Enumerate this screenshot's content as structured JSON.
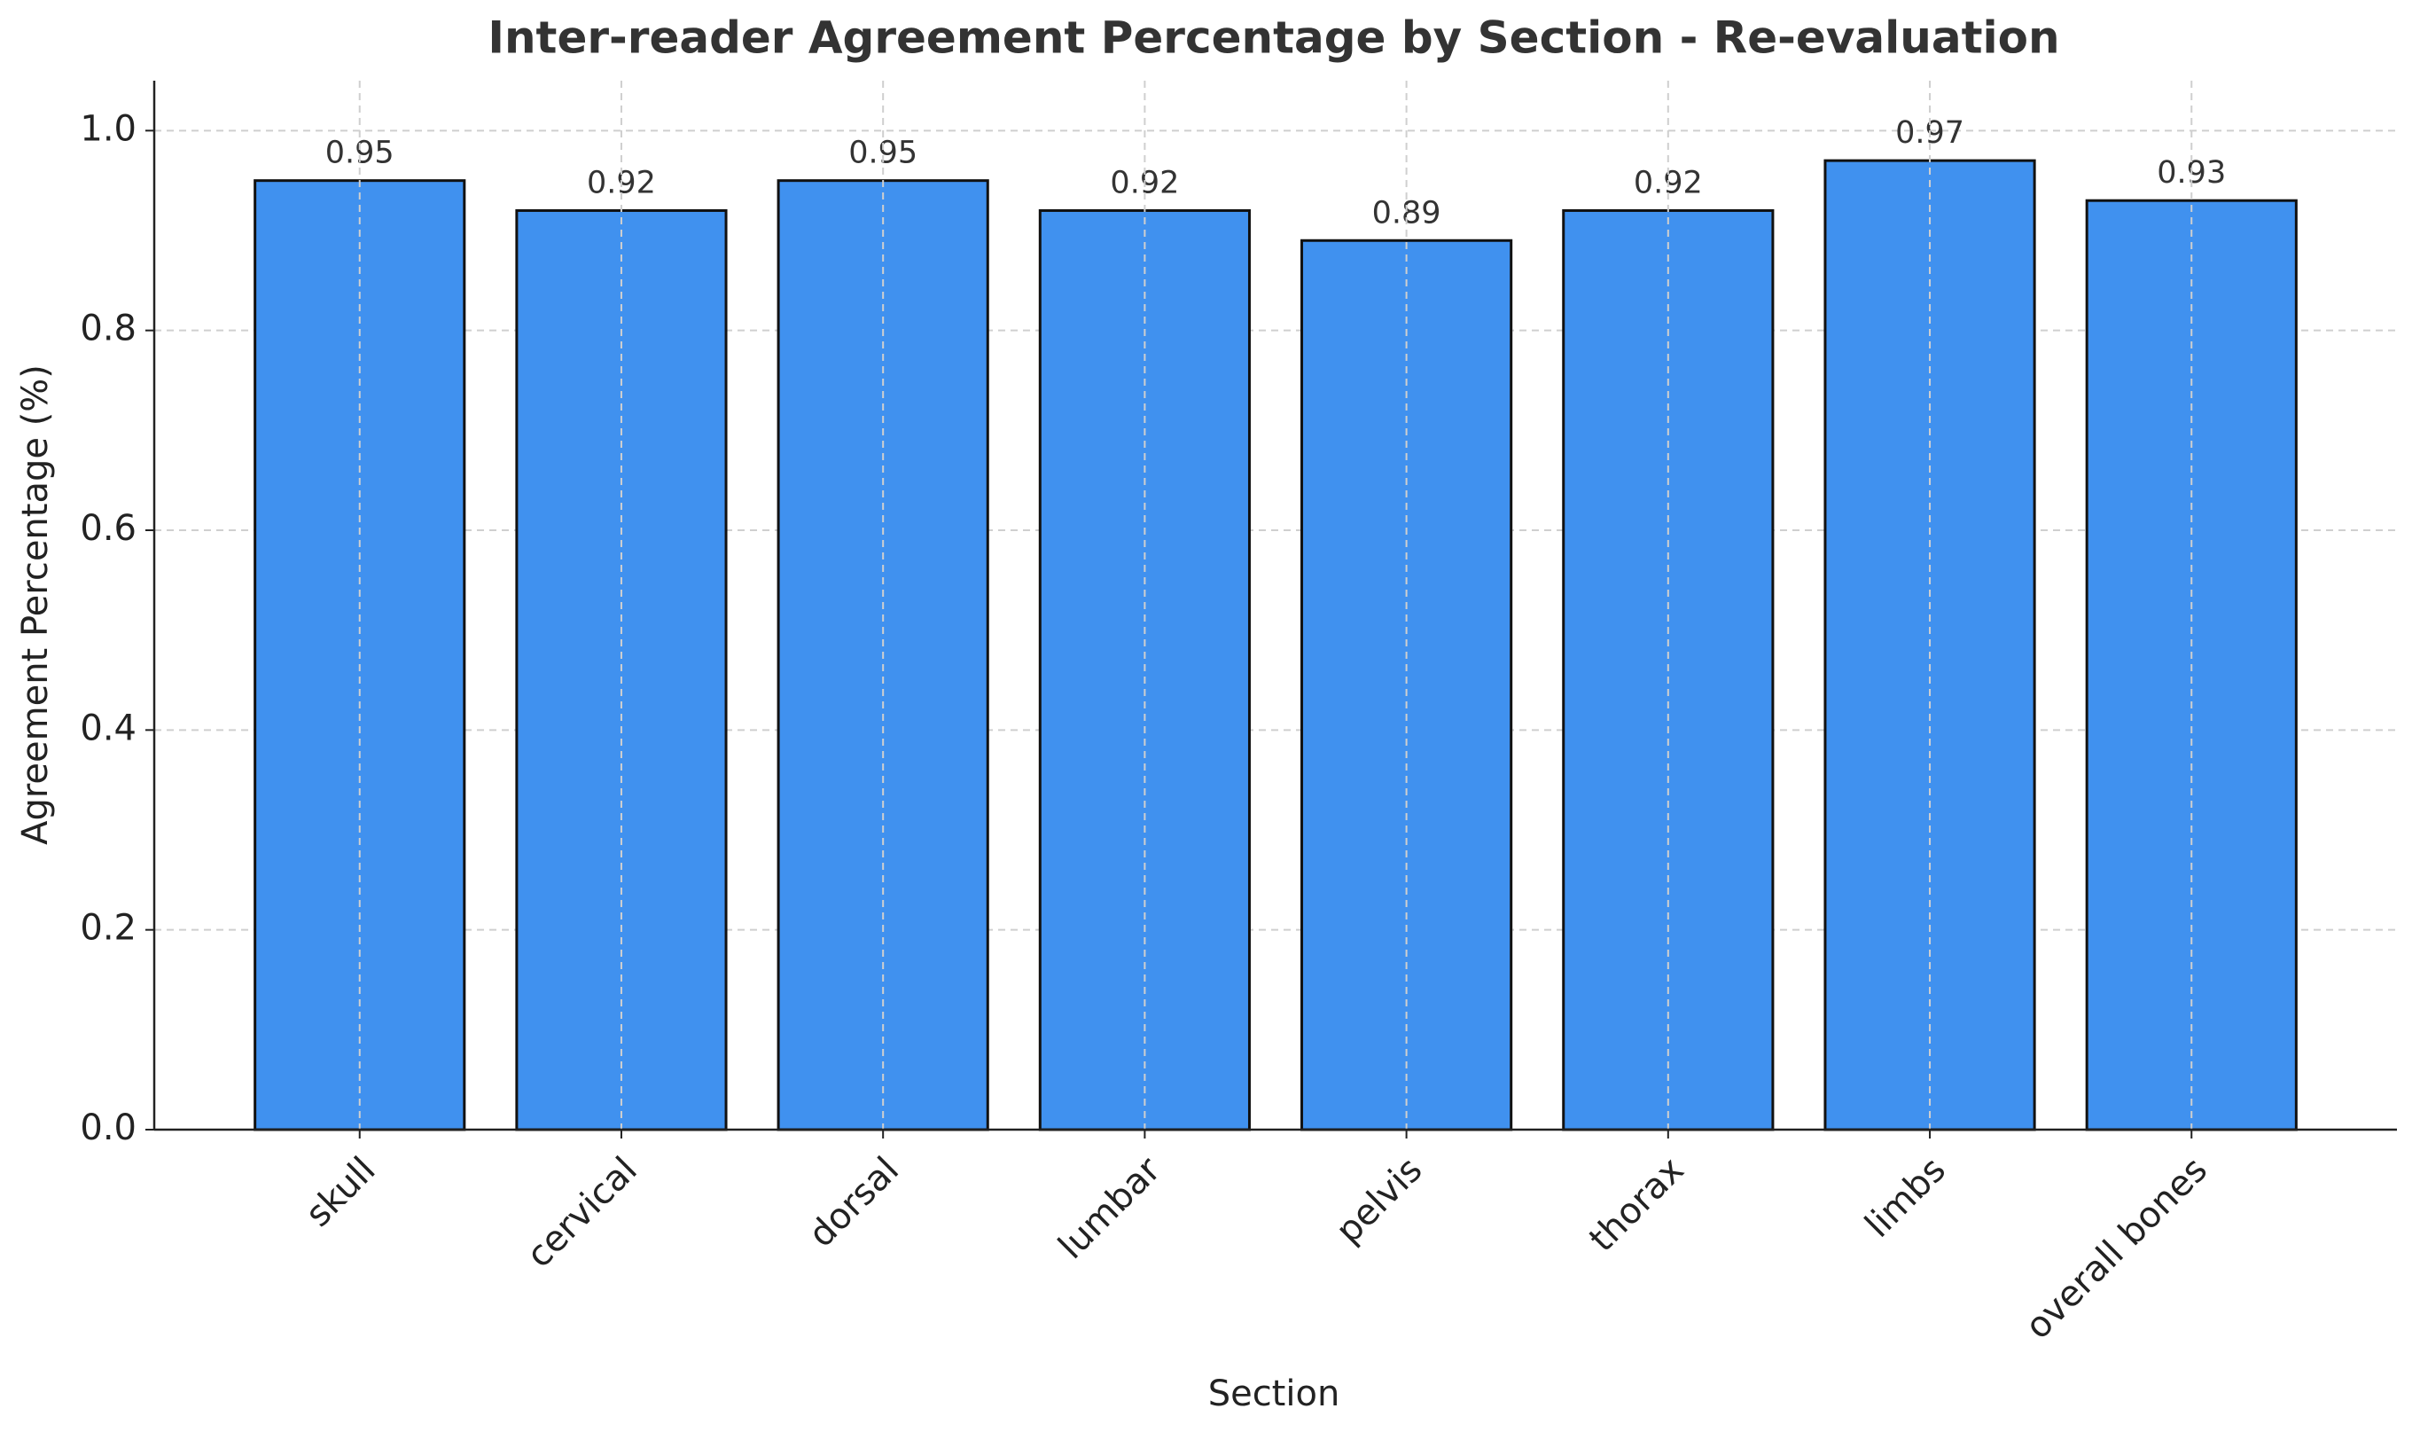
{
  "chart_data": {
    "type": "bar",
    "title": "Inter-reader Agreement Percentage by Section - Re-evaluation",
    "x_label": "Section",
    "y_label": "Agreement Percentage (%)",
    "categories": [
      "skull",
      "cervical",
      "dorsal",
      "lumbar",
      "pelvis",
      "thorax",
      "limbs",
      "overall bones"
    ],
    "values": [
      0.95,
      0.92,
      0.95,
      0.92,
      0.89,
      0.92,
      0.97,
      0.93
    ],
    "color": "#4091ef",
    "edge_color": "#111111",
    "ylim": [
      0,
      1.05
    ],
    "yticks": [
      {
        "value": 0,
        "label": "0.0"
      },
      0.2,
      0.4,
      0.6,
      0.8,
      {
        "value": 1,
        "label": "1.0"
      }
    ],
    "grid": true
  }
}
